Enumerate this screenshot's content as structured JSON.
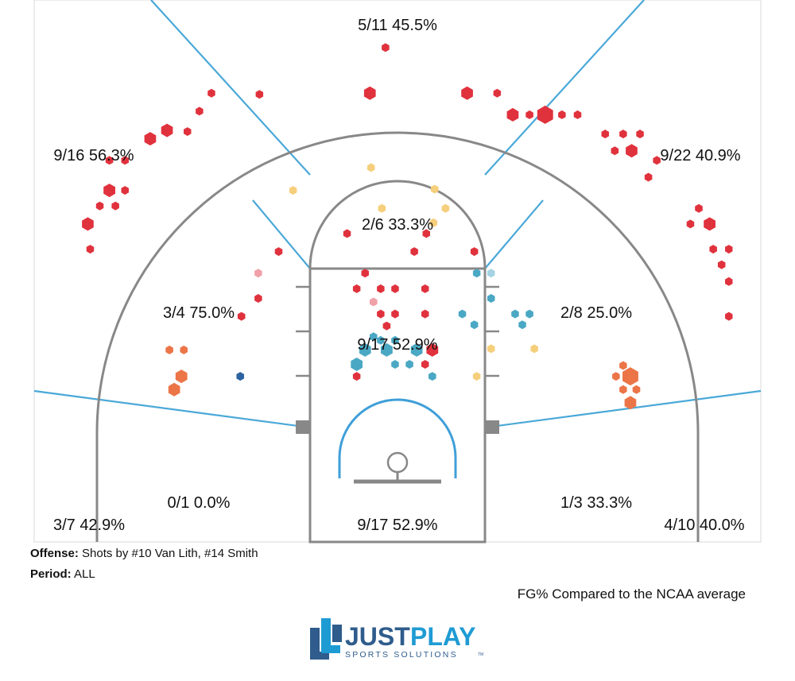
{
  "chart_data": {
    "type": "scatter",
    "title": "",
    "legend_text": "FG% Compared to the NCAA average",
    "color_scale": {
      "far_below": "#2c63a0",
      "below": "#4aa8c4",
      "slightly_below": "#a5d3e3",
      "slightly_above": "#f6cf7c",
      "above": "#ec7548",
      "far_above": "#e0323d",
      "neutral": "#f0a0a8"
    },
    "zones": [
      {
        "id": "top-three",
        "label": "5/11 45.5%",
        "made": 5,
        "attempts": 11,
        "pct": 45.5
      },
      {
        "id": "left-wing-three",
        "label": "9/16 56.3%",
        "made": 9,
        "attempts": 16,
        "pct": 56.3
      },
      {
        "id": "right-wing-three",
        "label": "9/22 40.9%",
        "made": 9,
        "attempts": 22,
        "pct": 40.9
      },
      {
        "id": "top-of-key",
        "label": "2/6 33.3%",
        "made": 2,
        "attempts": 6,
        "pct": 33.3
      },
      {
        "id": "left-midrange",
        "label": "3/4 75.0%",
        "made": 3,
        "attempts": 4,
        "pct": 75.0
      },
      {
        "id": "right-midrange",
        "label": "2/8 25.0%",
        "made": 2,
        "attempts": 8,
        "pct": 25.0
      },
      {
        "id": "lane",
        "label": "9/17 52.9%",
        "made": 9,
        "attempts": 17,
        "pct": 52.9
      },
      {
        "id": "left-baseline-mid",
        "label": "0/1 0.0%",
        "made": 0,
        "attempts": 1,
        "pct": 0.0
      },
      {
        "id": "right-baseline-mid",
        "label": "1/3 33.3%",
        "made": 1,
        "attempts": 3,
        "pct": 33.3
      },
      {
        "id": "left-corner-three",
        "label": "3/7 42.9%",
        "made": 3,
        "attempts": 7,
        "pct": 42.9
      },
      {
        "id": "right-corner-three",
        "label": "4/10 40.0%",
        "made": 4,
        "attempts": 10,
        "pct": 40.0
      },
      {
        "id": "paint",
        "label": "9/17 52.9%",
        "made": 9,
        "attempts": 17,
        "pct": 52.9
      }
    ],
    "shots": [
      {
        "x": -1,
        "y": 41.2,
        "s": 1,
        "c": "far_above"
      },
      {
        "x": -11.5,
        "y": 37.3,
        "s": 1,
        "c": "far_above"
      },
      {
        "x": -2.3,
        "y": 37.4,
        "s": 2,
        "c": "far_above"
      },
      {
        "x": 5.8,
        "y": 37.4,
        "s": 2,
        "c": "far_above"
      },
      {
        "x": 8.3,
        "y": 37.4,
        "s": 1,
        "c": "far_above"
      },
      {
        "x": -15.5,
        "y": 37.4,
        "s": 1,
        "c": "far_above"
      },
      {
        "x": -16.5,
        "y": 35.9,
        "s": 1,
        "c": "far_above"
      },
      {
        "x": 9.6,
        "y": 35.6,
        "s": 2,
        "c": "far_above"
      },
      {
        "x": 11.0,
        "y": 35.6,
        "s": 1,
        "c": "far_above"
      },
      {
        "x": 12.3,
        "y": 35.6,
        "s": 3,
        "c": "far_above"
      },
      {
        "x": 13.7,
        "y": 35.6,
        "s": 1,
        "c": "far_above"
      },
      {
        "x": 15.0,
        "y": 35.6,
        "s": 1,
        "c": "far_above"
      },
      {
        "x": -17.5,
        "y": 34.2,
        "s": 1,
        "c": "far_above"
      },
      {
        "x": -19.2,
        "y": 34.3,
        "s": 2,
        "c": "far_above"
      },
      {
        "x": -20.6,
        "y": 33.6,
        "s": 2,
        "c": "far_above"
      },
      {
        "x": 17.3,
        "y": 34.0,
        "s": 1,
        "c": "far_above"
      },
      {
        "x": 18.8,
        "y": 34.0,
        "s": 1,
        "c": "far_above"
      },
      {
        "x": 20.2,
        "y": 34.0,
        "s": 1,
        "c": "far_above"
      },
      {
        "x": 18.1,
        "y": 32.6,
        "s": 1,
        "c": "far_above"
      },
      {
        "x": 19.5,
        "y": 32.6,
        "s": 2,
        "c": "far_above"
      },
      {
        "x": -24.0,
        "y": 31.8,
        "s": 1,
        "c": "far_above"
      },
      {
        "x": -22.7,
        "y": 31.8,
        "s": 1,
        "c": "far_above"
      },
      {
        "x": 21.6,
        "y": 31.8,
        "s": 1,
        "c": "far_above"
      },
      {
        "x": 20.9,
        "y": 30.4,
        "s": 1,
        "c": "far_above"
      },
      {
        "x": -24.0,
        "y": 29.3,
        "s": 2,
        "c": "far_above"
      },
      {
        "x": -22.7,
        "y": 29.3,
        "s": 1,
        "c": "far_above"
      },
      {
        "x": -24.8,
        "y": 28.0,
        "s": 1,
        "c": "far_above"
      },
      {
        "x": -23.5,
        "y": 28.0,
        "s": 1,
        "c": "far_above"
      },
      {
        "x": -25.8,
        "y": 26.5,
        "s": 2,
        "c": "far_above"
      },
      {
        "x": 25.1,
        "y": 27.8,
        "s": 1,
        "c": "far_above"
      },
      {
        "x": 24.4,
        "y": 26.5,
        "s": 1,
        "c": "far_above"
      },
      {
        "x": 26.0,
        "y": 26.5,
        "s": 2,
        "c": "far_above"
      },
      {
        "x": -25.6,
        "y": 24.4,
        "s": 1,
        "c": "far_above"
      },
      {
        "x": 26.3,
        "y": 24.4,
        "s": 1,
        "c": "far_above"
      },
      {
        "x": 27.6,
        "y": 24.4,
        "s": 1,
        "c": "far_above"
      },
      {
        "x": 27.0,
        "y": 23.1,
        "s": 1,
        "c": "far_above"
      },
      {
        "x": 27.6,
        "y": 21.7,
        "s": 1,
        "c": "far_above"
      },
      {
        "x": 27.6,
        "y": 18.8,
        "s": 1,
        "c": "far_above"
      },
      {
        "x": -2.2,
        "y": 31.2,
        "s": 1,
        "c": "slightly_above"
      },
      {
        "x": -8.7,
        "y": 29.3,
        "s": 1,
        "c": "slightly_above"
      },
      {
        "x": 3.1,
        "y": 29.4,
        "s": 1,
        "c": "slightly_above"
      },
      {
        "x": -1.3,
        "y": 27.8,
        "s": 1,
        "c": "slightly_above"
      },
      {
        "x": 4.0,
        "y": 27.8,
        "s": 1,
        "c": "slightly_above"
      },
      {
        "x": 3.0,
        "y": 26.6,
        "s": 1,
        "c": "slightly_above"
      },
      {
        "x": -4.2,
        "y": 25.7,
        "s": 1,
        "c": "far_above"
      },
      {
        "x": 2.4,
        "y": 25.7,
        "s": 1,
        "c": "far_above"
      },
      {
        "x": -9.9,
        "y": 24.2,
        "s": 1,
        "c": "far_above"
      },
      {
        "x": 1.4,
        "y": 24.2,
        "s": 1,
        "c": "far_above"
      },
      {
        "x": 6.4,
        "y": 24.2,
        "s": 1,
        "c": "far_above"
      },
      {
        "x": -11.6,
        "y": 22.4,
        "s": 1,
        "c": "neutral"
      },
      {
        "x": -11.6,
        "y": 20.3,
        "s": 1,
        "c": "far_above"
      },
      {
        "x": -13.0,
        "y": 18.8,
        "s": 1,
        "c": "far_above"
      },
      {
        "x": -2.7,
        "y": 22.4,
        "s": 1,
        "c": "far_above"
      },
      {
        "x": -3.4,
        "y": 21.1,
        "s": 1,
        "c": "far_above"
      },
      {
        "x": -1.4,
        "y": 21.1,
        "s": 1,
        "c": "far_above"
      },
      {
        "x": -0.2,
        "y": 21.1,
        "s": 1,
        "c": "far_above"
      },
      {
        "x": 2.3,
        "y": 21.1,
        "s": 1,
        "c": "far_above"
      },
      {
        "x": -2.0,
        "y": 20.0,
        "s": 1,
        "c": "neutral"
      },
      {
        "x": -1.4,
        "y": 19.0,
        "s": 1,
        "c": "far_above"
      },
      {
        "x": -0.2,
        "y": 19.0,
        "s": 1,
        "c": "far_above"
      },
      {
        "x": 2.3,
        "y": 19.0,
        "s": 1,
        "c": "far_above"
      },
      {
        "x": -0.9,
        "y": 18.0,
        "s": 1,
        "c": "far_above"
      },
      {
        "x": 6.6,
        "y": 22.4,
        "s": 1,
        "c": "below"
      },
      {
        "x": 7.8,
        "y": 22.4,
        "s": 1,
        "c": "slightly_below"
      },
      {
        "x": 7.8,
        "y": 20.3,
        "s": 1,
        "c": "below"
      },
      {
        "x": 5.4,
        "y": 19.0,
        "s": 1,
        "c": "below"
      },
      {
        "x": 9.8,
        "y": 19.0,
        "s": 1,
        "c": "below"
      },
      {
        "x": 11.0,
        "y": 19.0,
        "s": 1,
        "c": "below"
      },
      {
        "x": 6.4,
        "y": 18.1,
        "s": 1,
        "c": "below"
      },
      {
        "x": 10.4,
        "y": 18.1,
        "s": 1,
        "c": "below"
      },
      {
        "x": -2.0,
        "y": 17.1,
        "s": 1,
        "c": "below"
      },
      {
        "x": -1.4,
        "y": 16.8,
        "s": 1,
        "c": "below"
      },
      {
        "x": -0.2,
        "y": 16.8,
        "s": 1,
        "c": "below"
      },
      {
        "x": -2.7,
        "y": 16.0,
        "s": 2,
        "c": "below"
      },
      {
        "x": -0.9,
        "y": 16.0,
        "s": 2,
        "c": "below"
      },
      {
        "x": 1.6,
        "y": 16.0,
        "s": 2,
        "c": "below"
      },
      {
        "x": 2.9,
        "y": 16.0,
        "s": 2,
        "c": "far_above"
      },
      {
        "x": -3.4,
        "y": 14.8,
        "s": 2,
        "c": "below"
      },
      {
        "x": -0.2,
        "y": 14.8,
        "s": 1,
        "c": "below"
      },
      {
        "x": 1.0,
        "y": 14.8,
        "s": 1,
        "c": "below"
      },
      {
        "x": 2.3,
        "y": 14.8,
        "s": 1,
        "c": "far_above"
      },
      {
        "x": -3.4,
        "y": 13.8,
        "s": 1,
        "c": "far_above"
      },
      {
        "x": 2.9,
        "y": 13.8,
        "s": 1,
        "c": "below"
      },
      {
        "x": 7.8,
        "y": 16.1,
        "s": 1,
        "c": "slightly_above"
      },
      {
        "x": 11.4,
        "y": 16.1,
        "s": 1,
        "c": "slightly_above"
      },
      {
        "x": 6.6,
        "y": 13.8,
        "s": 1,
        "c": "slightly_above"
      },
      {
        "x": -13.1,
        "y": 13.8,
        "s": 1,
        "c": "far_below"
      },
      {
        "x": -19.0,
        "y": 16.0,
        "s": 1,
        "c": "above"
      },
      {
        "x": -17.8,
        "y": 16.0,
        "s": 1,
        "c": "above"
      },
      {
        "x": -18.0,
        "y": 13.8,
        "s": 2,
        "c": "above"
      },
      {
        "x": -18.6,
        "y": 12.7,
        "s": 2,
        "c": "above"
      },
      {
        "x": 18.8,
        "y": 14.7,
        "s": 1,
        "c": "above"
      },
      {
        "x": 18.2,
        "y": 13.8,
        "s": 1,
        "c": "above"
      },
      {
        "x": 19.4,
        "y": 13.8,
        "s": 3,
        "c": "above"
      },
      {
        "x": 18.8,
        "y": 12.7,
        "s": 1,
        "c": "above"
      },
      {
        "x": 19.9,
        "y": 12.7,
        "s": 1,
        "c": "above"
      },
      {
        "x": 19.4,
        "y": 11.6,
        "s": 2,
        "c": "above"
      }
    ]
  },
  "footer": {
    "offense_label": "Offense:",
    "offense_value": " Shots by #10 Van Lith, #14 Smith",
    "period_label": "Period:",
    "period_value": " ALL"
  },
  "logo": {
    "word1": "JUST",
    "word2": "PLAY",
    "tagline": "SPORTS SOLUTIONS",
    "tm": "TM",
    "brand_color": "#2f5c8c",
    "accent_color": "#1f9bd4"
  }
}
